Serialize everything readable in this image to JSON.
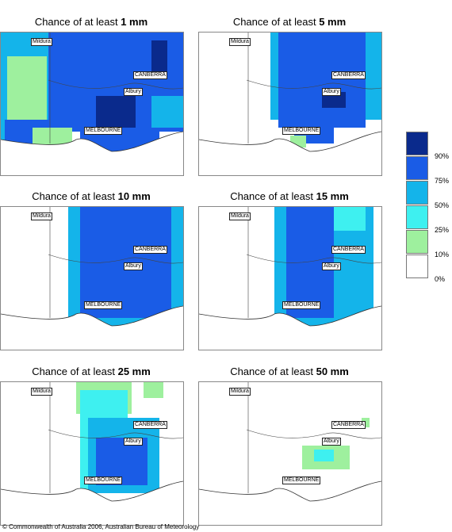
{
  "panels": [
    {
      "title_prefix": "Chance of at least ",
      "amount": "1 mm"
    },
    {
      "title_prefix": "Chance of at least ",
      "amount": "5 mm"
    },
    {
      "title_prefix": "Chance of at least ",
      "amount": "10 mm"
    },
    {
      "title_prefix": "Chance of at least ",
      "amount": "15 mm"
    },
    {
      "title_prefix": "Chance of at least ",
      "amount": "25 mm"
    },
    {
      "title_prefix": "Chance of at least ",
      "amount": "50 mm"
    }
  ],
  "places": {
    "mildura": "Mildura",
    "canberra": "CANBERRA",
    "albury": "Albury",
    "melbourne": "MELBOURNE"
  },
  "legend": {
    "levels": [
      "90%",
      "75%",
      "50%",
      "25%",
      "10%",
      "0%"
    ],
    "colors": [
      "#0a2a8c",
      "#1a5ce6",
      "#14b4ea",
      "#3ef0f0",
      "#9ef09e",
      "#ffffff"
    ]
  },
  "copyright": "© Commonwealth of Australia 2006, Australian Bureau of Meteorology"
}
